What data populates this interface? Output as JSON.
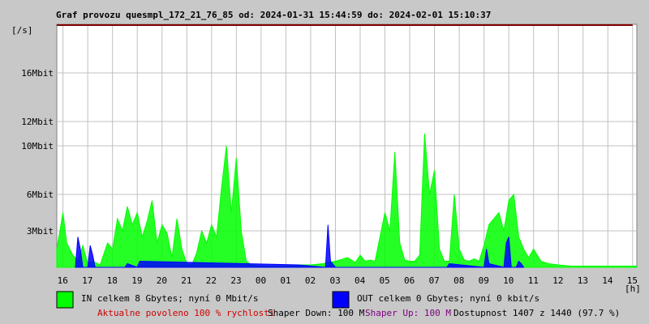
{
  "chart_data": {
    "type": "area",
    "title": "Graf provozu quesmpl_172_21_76_85 od: 2024-01-31 15:44:59 do: 2024-02-01 15:10:37",
    "ylabel": "[/s]",
    "xlabel": "[h]",
    "ylim": [
      0,
      20
    ],
    "y_unit": "Mbit",
    "y_ticks": [
      {
        "value": 3,
        "label": "3Mbit"
      },
      {
        "value": 6,
        "label": "6Mbit"
      },
      {
        "value": 10,
        "label": "10Mbit"
      },
      {
        "value": 12,
        "label": "12Mbit"
      },
      {
        "value": 16,
        "label": "16Mbit"
      }
    ],
    "x_tick_labels": [
      "16",
      "17",
      "18",
      "19",
      "20",
      "21",
      "22",
      "23",
      "00",
      "01",
      "02",
      "03",
      "04",
      "05",
      "06",
      "07",
      "08",
      "09",
      "10",
      "11",
      "12",
      "13",
      "14",
      "15"
    ],
    "x_range_hours": [
      15.75,
      39.17
    ],
    "limit_line": 20,
    "grid": true,
    "legend_placement": "bottom",
    "series": [
      {
        "name": "IN",
        "color": "#00ff00",
        "x": [
          15.75,
          16.0,
          16.15,
          16.4,
          16.6,
          16.8,
          17.0,
          17.2,
          17.5,
          17.8,
          18.0,
          18.2,
          18.4,
          18.6,
          18.8,
          19.0,
          19.2,
          19.4,
          19.6,
          19.8,
          20.0,
          20.2,
          20.4,
          20.6,
          20.8,
          21.0,
          21.2,
          21.4,
          21.6,
          21.8,
          22.0,
          22.2,
          22.4,
          22.6,
          22.8,
          23.0,
          23.2,
          23.4,
          23.6,
          24.0,
          24.5,
          25.0,
          25.5,
          26.0,
          26.5,
          27.0,
          27.5,
          27.8,
          28.0,
          28.2,
          28.4,
          28.6,
          28.8,
          29.0,
          29.2,
          29.4,
          29.6,
          29.8,
          30.0,
          30.2,
          30.4,
          30.6,
          30.8,
          31.0,
          31.2,
          31.4,
          31.6,
          31.8,
          32.0,
          32.2,
          32.4,
          32.6,
          32.8,
          33.0,
          33.2,
          33.4,
          33.6,
          33.8,
          34.0,
          34.2,
          34.4,
          34.6,
          34.8,
          35.0,
          35.3,
          35.6,
          36.0,
          36.5,
          37.0,
          37.5,
          38.0,
          38.5,
          39.0,
          39.17
        ],
        "y": [
          1.5,
          4.5,
          2.0,
          1.0,
          0.5,
          1.8,
          0.3,
          0.5,
          0.2,
          2.0,
          1.5,
          4.0,
          3.0,
          5.0,
          3.5,
          4.5,
          2.5,
          3.8,
          5.5,
          2.0,
          3.5,
          2.8,
          0.8,
          4.0,
          1.5,
          0.3,
          0.2,
          1.2,
          3.0,
          2.0,
          3.5,
          2.5,
          6.5,
          10.0,
          4.5,
          9.0,
          3.0,
          0.5,
          0.2,
          0.1,
          0.1,
          0.1,
          0.2,
          0.2,
          0.3,
          0.5,
          0.8,
          0.4,
          1.0,
          0.5,
          0.6,
          0.5,
          2.5,
          4.5,
          3.0,
          9.5,
          2.0,
          0.6,
          0.5,
          0.5,
          1.0,
          11.0,
          6.0,
          8.0,
          1.5,
          0.5,
          0.5,
          6.0,
          1.5,
          0.6,
          0.5,
          0.7,
          0.5,
          1.8,
          3.5,
          4.0,
          4.5,
          3.0,
          5.5,
          6.0,
          2.5,
          1.5,
          0.8,
          1.5,
          0.5,
          0.3,
          0.2,
          0.1,
          0.1,
          0.1,
          0.1,
          0.1,
          0.1,
          0.1
        ]
      },
      {
        "name": "OUT",
        "color": "#0000ff",
        "x": [
          16.5,
          16.6,
          16.7,
          16.8,
          17.0,
          17.1,
          17.2,
          17.3,
          18.5,
          18.6,
          19.0,
          19.1,
          25.5,
          26.6,
          26.7,
          26.8,
          27.0,
          31.5,
          31.6,
          33.0,
          33.1,
          33.2,
          33.8,
          33.9,
          34.0,
          34.1,
          34.3,
          34.4,
          34.5,
          34.6
        ],
        "y": [
          0.0,
          2.5,
          1.5,
          0.0,
          0.0,
          1.8,
          1.0,
          0.0,
          0.0,
          0.3,
          0.0,
          0.5,
          0.2,
          0.0,
          3.5,
          0.5,
          0.0,
          0.0,
          0.3,
          0.0,
          1.5,
          0.3,
          0.0,
          2.0,
          2.5,
          0.0,
          0.0,
          0.5,
          0.3,
          0.0
        ]
      }
    ]
  },
  "legend": {
    "in_text": "IN celkem 8 Gbytes; nyní 0 Mbit/s",
    "out_text": "OUT celkem 0 Gbytes; nyní 0 kbit/s",
    "in_color": "#00ff00",
    "out_color": "#0000ff"
  },
  "footer": {
    "allowed": "Aktualne povoleno 100 % rychlosti",
    "shaper_down": "Shaper Down: 100 M",
    "shaper_up": "Shaper Up: 100 M",
    "availability": "Dostupnost 1407 z 1440 (97.7 %)"
  },
  "colors": {
    "background": "#c8c8c8",
    "plot_bg": "#ffffff",
    "grid": "#c0c0c0",
    "limit_line": "#800000",
    "allowed_text": "#d00000",
    "shaper_up_text": "#800080"
  }
}
